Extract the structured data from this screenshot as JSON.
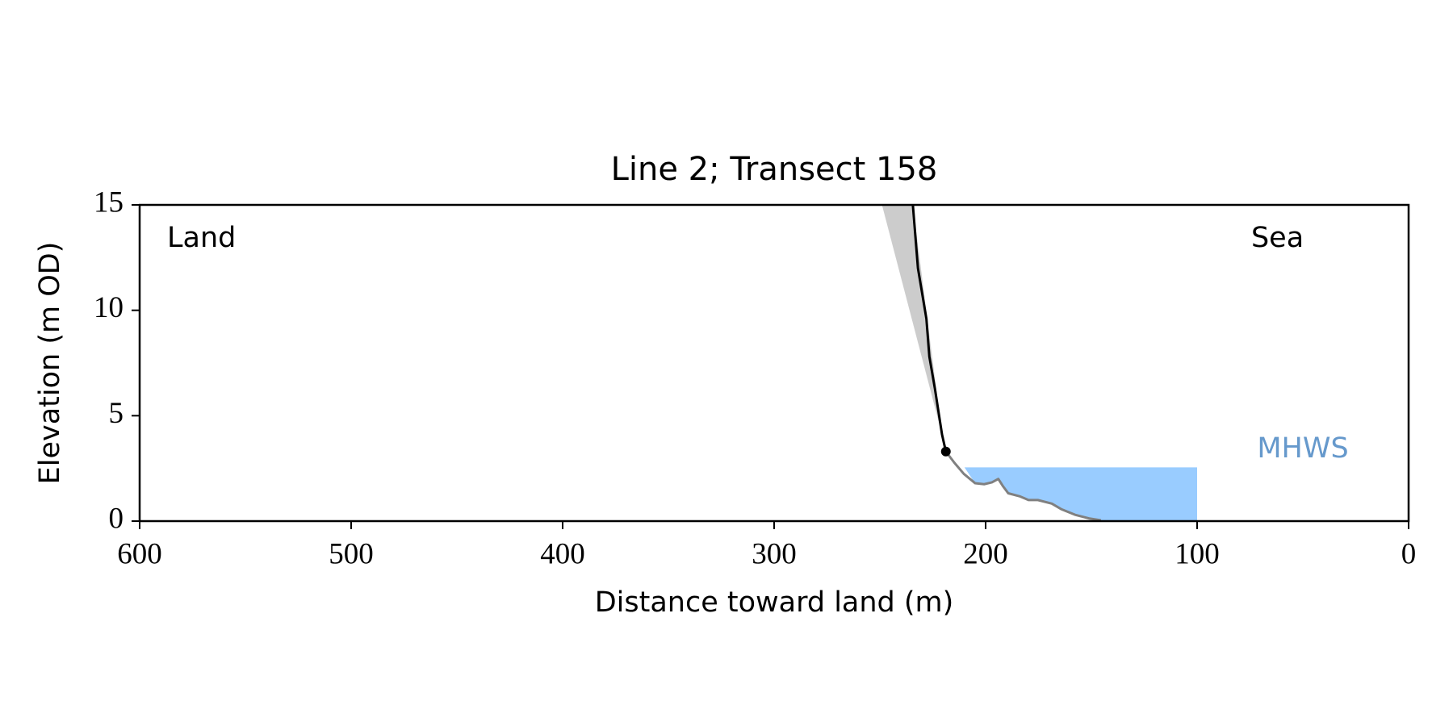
{
  "chart_data": {
    "type": "line",
    "title": "Line 2; Transect 158",
    "xlabel": "Distance toward land (m)",
    "ylabel": "Elevation (m OD)",
    "xlim": [
      600,
      0
    ],
    "ylim": [
      0,
      15
    ],
    "xticks": [
      600,
      500,
      400,
      300,
      200,
      100,
      0
    ],
    "yticks": [
      0,
      5,
      10,
      15
    ],
    "annotations": [
      {
        "text": "Land",
        "x": 587,
        "y": 13.4
      },
      {
        "text": "Sea",
        "x": 62,
        "y": 13.4
      }
    ],
    "shaded_region": {
      "color": "#cccccc",
      "x": [
        249,
        234.4,
        220.6
      ],
      "y": [
        15,
        15,
        4.1
      ]
    },
    "series": [
      {
        "name": "cliff",
        "color": "#000000",
        "x": [
          234.4,
          232,
          228,
          226.6,
          224,
          220.6,
          218.8
        ],
        "y": [
          15,
          12,
          9.6,
          7.8,
          6.3,
          4.1,
          3.3
        ]
      },
      {
        "name": "beach",
        "color": "#808080",
        "x": [
          218.8,
          214.7,
          210.3,
          205,
          200.7,
          197,
          194,
          191.9,
          189.3,
          184,
          179.7,
          175.3,
          168.7,
          164.3,
          157.7,
          151.2,
          145.5
        ],
        "y": [
          3.3,
          2.76,
          2.24,
          1.8,
          1.75,
          1.84,
          2.0,
          1.67,
          1.32,
          1.18,
          1.0,
          1.0,
          0.83,
          0.57,
          0.3,
          0.13,
          0.04
        ]
      }
    ],
    "point": {
      "x": 218.8,
      "y": 3.3,
      "color": "#000000"
    },
    "mhws": {
      "label": "MHWS",
      "level": 2.55,
      "x": [
        210,
        100
      ],
      "color": "#99ccff",
      "label_color": "#6699cc",
      "label_x": 50,
      "label_y": 3.4
    }
  }
}
